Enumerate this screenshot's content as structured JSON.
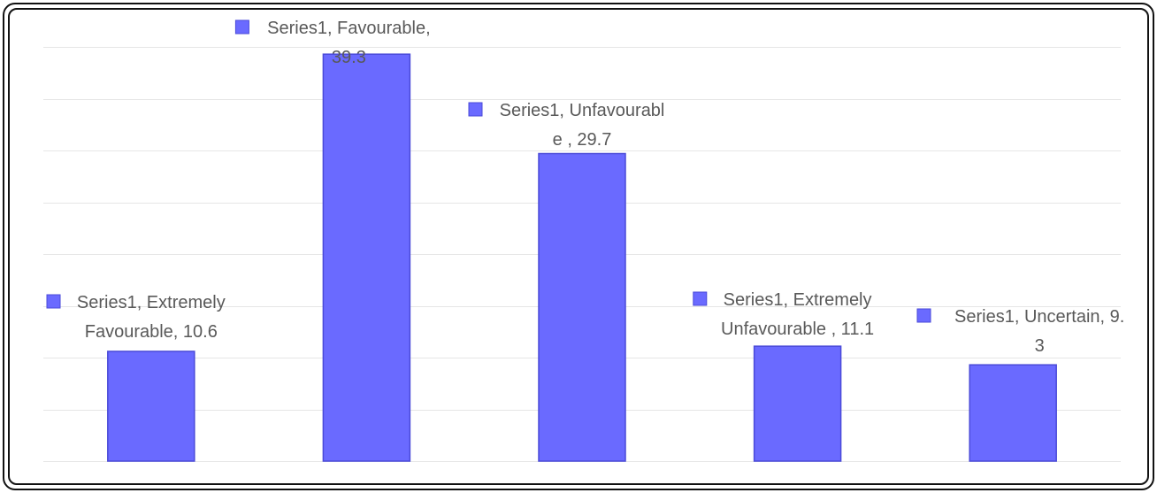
{
  "chart_data": {
    "type": "bar",
    "categories": [
      "Extremely Favourable",
      "Favourable",
      "Unfavourable",
      "Extremely Unfavourable",
      "Uncertain"
    ],
    "series": [
      {
        "values": [
          10.6,
          39.3,
          29.7,
          11.1,
          9.3
        ]
      }
    ],
    "ylim": [
      0,
      40
    ],
    "grid": true,
    "legend": "none",
    "colors": {
      "bar": "#6a6aff",
      "bar_edge": "#4a4ad8",
      "grid": "#e6e6e6",
      "label": "#595959"
    },
    "data_labels": [
      [
        "Series1, Extremely",
        "Favourable, 10.6"
      ],
      [
        "Series1, Favourable,",
        "39.3"
      ],
      [
        "Series1, Unfavourabl",
        "e , 29.7"
      ],
      [
        "Series1, Extremely",
        "Unfavourable , 11.1"
      ],
      [
        "Series1, Uncertain, 9.",
        "3"
      ]
    ]
  }
}
